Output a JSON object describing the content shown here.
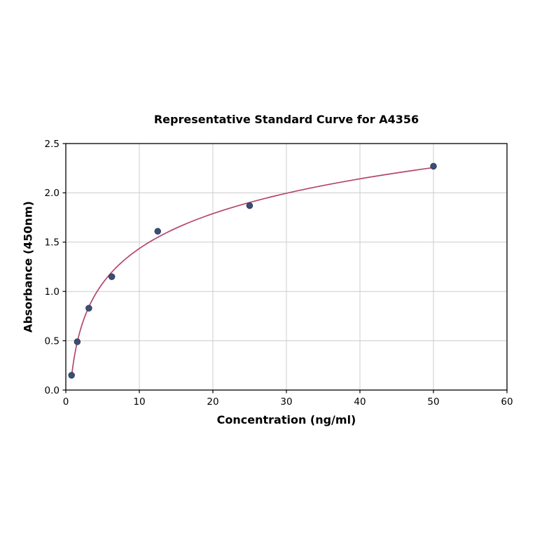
{
  "chart_data": {
    "type": "scatter",
    "title": "Representative Standard Curve for A4356",
    "xlabel": "Concentration (ng/ml)",
    "ylabel": "Absorbance (450nm)",
    "xlim": [
      0,
      60
    ],
    "ylim": [
      0,
      2.5
    ],
    "x_ticks": [
      0,
      10,
      20,
      30,
      40,
      50,
      60
    ],
    "x_tick_labels": [
      "0",
      "10",
      "20",
      "30",
      "40",
      "50",
      "60"
    ],
    "y_ticks": [
      0,
      0.5,
      1.0,
      1.5,
      2.0,
      2.5
    ],
    "y_tick_labels": [
      "0.0",
      "0.5",
      "1.0",
      "1.5",
      "2.0",
      "2.5"
    ],
    "grid": true,
    "legend": "none",
    "points": {
      "x": [
        0.78,
        1.56,
        3.13,
        6.25,
        12.5,
        25,
        50
      ],
      "y": [
        0.15,
        0.49,
        0.83,
        1.15,
        1.61,
        1.87,
        2.27
      ]
    },
    "curve": {
      "fit": "log",
      "from_x": 0.78,
      "to_x": 50
    },
    "colors": {
      "point_fill": "#3a4f72",
      "point_edge": "#2b3c59",
      "curve": "#b5476b",
      "grid": "#cccccc",
      "axis": "#000000",
      "background": "#ffffff"
    }
  }
}
